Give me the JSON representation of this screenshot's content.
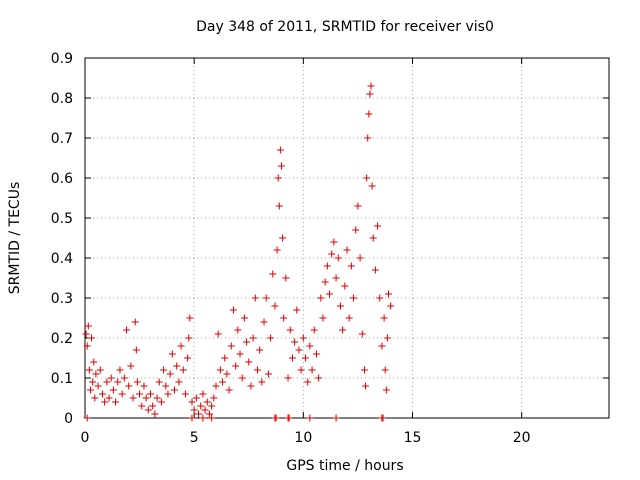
{
  "chart_data": {
    "type": "scatter",
    "title": "Day 348 of 2011, SRMTID for receiver vis0",
    "xlabel": "GPS time / hours",
    "ylabel": "SRMTID / TECUs",
    "xlim": [
      0,
      24
    ],
    "ylim": [
      0,
      0.9
    ],
    "xticks": [
      "0",
      "5",
      "10",
      "15",
      "20"
    ],
    "yticks": [
      "0",
      "0.1",
      "0.2",
      "0.3",
      "0.4",
      "0.5",
      "0.6",
      "0.7",
      "0.8",
      "0.9"
    ],
    "grid": true,
    "marker": "+",
    "series": [
      {
        "name": "vis0",
        "color": "#e00000",
        "points": [
          [
            0.05,
            0.21
          ],
          [
            0.1,
            0.18
          ],
          [
            0.15,
            0.23
          ],
          [
            0.2,
            0.12
          ],
          [
            0.25,
            0.07
          ],
          [
            0.3,
            0.2
          ],
          [
            0.35,
            0.09
          ],
          [
            0.4,
            0.14
          ],
          [
            0.45,
            0.05
          ],
          [
            0.5,
            0.11
          ],
          [
            0.6,
            0.08
          ],
          [
            0.7,
            0.12
          ],
          [
            0.8,
            0.06
          ],
          [
            0.9,
            0.04
          ],
          [
            1.0,
            0.09
          ],
          [
            1.1,
            0.05
          ],
          [
            1.2,
            0.1
          ],
          [
            1.3,
            0.07
          ],
          [
            1.4,
            0.04
          ],
          [
            1.5,
            0.09
          ],
          [
            1.6,
            0.12
          ],
          [
            1.7,
            0.06
          ],
          [
            1.8,
            0.1
          ],
          [
            1.9,
            0.22
          ],
          [
            2.0,
            0.08
          ],
          [
            2.1,
            0.13
          ],
          [
            2.2,
            0.05
          ],
          [
            2.3,
            0.24
          ],
          [
            2.35,
            0.17
          ],
          [
            2.4,
            0.09
          ],
          [
            2.5,
            0.06
          ],
          [
            2.6,
            0.03
          ],
          [
            2.7,
            0.08
          ],
          [
            2.8,
            0.05
          ],
          [
            2.9,
            0.02
          ],
          [
            3.0,
            0.06
          ],
          [
            3.1,
            0.03
          ],
          [
            3.2,
            0.01
          ],
          [
            3.3,
            0.05
          ],
          [
            3.4,
            0.09
          ],
          [
            3.5,
            0.04
          ],
          [
            3.6,
            0.12
          ],
          [
            3.7,
            0.08
          ],
          [
            3.8,
            0.06
          ],
          [
            3.9,
            0.11
          ],
          [
            4.0,
            0.16
          ],
          [
            4.1,
            0.07
          ],
          [
            4.2,
            0.13
          ],
          [
            4.3,
            0.09
          ],
          [
            4.4,
            0.18
          ],
          [
            4.5,
            0.12
          ],
          [
            4.6,
            0.06
          ],
          [
            4.7,
            0.15
          ],
          [
            4.75,
            0.2
          ],
          [
            4.8,
            0.25
          ],
          [
            4.9,
            0.04
          ],
          [
            5.0,
            0.02
          ],
          [
            5.1,
            0.05
          ],
          [
            5.2,
            0.01
          ],
          [
            5.3,
            0.03
          ],
          [
            5.4,
            0.06
          ],
          [
            5.5,
            0.02
          ],
          [
            5.6,
            0.04
          ],
          [
            5.7,
            0.01
          ],
          [
            5.8,
            0.03
          ],
          [
            5.9,
            0.05
          ],
          [
            6.0,
            0.08
          ],
          [
            6.1,
            0.21
          ],
          [
            6.2,
            0.12
          ],
          [
            6.3,
            0.09
          ],
          [
            6.4,
            0.15
          ],
          [
            6.5,
            0.11
          ],
          [
            6.6,
            0.07
          ],
          [
            6.7,
            0.18
          ],
          [
            6.8,
            0.27
          ],
          [
            6.9,
            0.13
          ],
          [
            7.0,
            0.22
          ],
          [
            7.1,
            0.16
          ],
          [
            7.2,
            0.1
          ],
          [
            7.3,
            0.25
          ],
          [
            7.4,
            0.19
          ],
          [
            7.5,
            0.14
          ],
          [
            7.6,
            0.08
          ],
          [
            7.7,
            0.2
          ],
          [
            7.8,
            0.3
          ],
          [
            7.9,
            0.12
          ],
          [
            8.0,
            0.17
          ],
          [
            8.1,
            0.09
          ],
          [
            8.2,
            0.24
          ],
          [
            8.3,
            0.3
          ],
          [
            8.4,
            0.11
          ],
          [
            8.5,
            0.2
          ],
          [
            8.6,
            0.36
          ],
          [
            8.7,
            0.28
          ],
          [
            8.8,
            0.42
          ],
          [
            8.85,
            0.6
          ],
          [
            8.9,
            0.53
          ],
          [
            8.95,
            0.67
          ],
          [
            9.0,
            0.63
          ],
          [
            9.05,
            0.45
          ],
          [
            9.1,
            0.25
          ],
          [
            9.2,
            0.35
          ],
          [
            9.3,
            0.1
          ],
          [
            9.4,
            0.22
          ],
          [
            9.5,
            0.15
          ],
          [
            9.6,
            0.19
          ],
          [
            9.7,
            0.27
          ],
          [
            9.8,
            0.17
          ],
          [
            9.9,
            0.12
          ],
          [
            10.0,
            0.2
          ],
          [
            10.1,
            0.15
          ],
          [
            10.2,
            0.09
          ],
          [
            10.3,
            0.18
          ],
          [
            10.4,
            0.12
          ],
          [
            10.5,
            0.22
          ],
          [
            10.6,
            0.16
          ],
          [
            10.7,
            0.1
          ],
          [
            10.8,
            0.3
          ],
          [
            10.9,
            0.25
          ],
          [
            11.0,
            0.34
          ],
          [
            11.1,
            0.38
          ],
          [
            11.2,
            0.31
          ],
          [
            11.3,
            0.41
          ],
          [
            11.4,
            0.44
          ],
          [
            11.5,
            0.35
          ],
          [
            11.6,
            0.4
          ],
          [
            11.7,
            0.28
          ],
          [
            11.8,
            0.22
          ],
          [
            11.9,
            0.33
          ],
          [
            12.0,
            0.42
          ],
          [
            12.1,
            0.25
          ],
          [
            12.2,
            0.38
          ],
          [
            12.3,
            0.3
          ],
          [
            12.4,
            0.47
          ],
          [
            12.5,
            0.53
          ],
          [
            12.6,
            0.4
          ],
          [
            12.7,
            0.21
          ],
          [
            12.8,
            0.12
          ],
          [
            12.85,
            0.08
          ],
          [
            12.9,
            0.6
          ],
          [
            12.95,
            0.7
          ],
          [
            13.0,
            0.76
          ],
          [
            13.05,
            0.81
          ],
          [
            13.1,
            0.83
          ],
          [
            13.15,
            0.58
          ],
          [
            13.2,
            0.45
          ],
          [
            13.3,
            0.37
          ],
          [
            13.4,
            0.48
          ],
          [
            13.5,
            0.3
          ],
          [
            13.6,
            0.18
          ],
          [
            13.7,
            0.25
          ],
          [
            13.75,
            0.12
          ],
          [
            13.8,
            0.07
          ],
          [
            13.85,
            0.2
          ],
          [
            13.9,
            0.31
          ],
          [
            14.0,
            0.28
          ],
          [
            0.1,
            0.0
          ],
          [
            4.9,
            0.0
          ],
          [
            5.4,
            0.0
          ],
          [
            5.8,
            0.0
          ],
          [
            8.7,
            0.0
          ],
          [
            8.75,
            0.0
          ],
          [
            9.3,
            0.0
          ],
          [
            9.35,
            0.0
          ],
          [
            10.3,
            0.0
          ],
          [
            11.5,
            0.0
          ],
          [
            13.6,
            0.0
          ],
          [
            13.65,
            0.0
          ]
        ]
      }
    ]
  }
}
